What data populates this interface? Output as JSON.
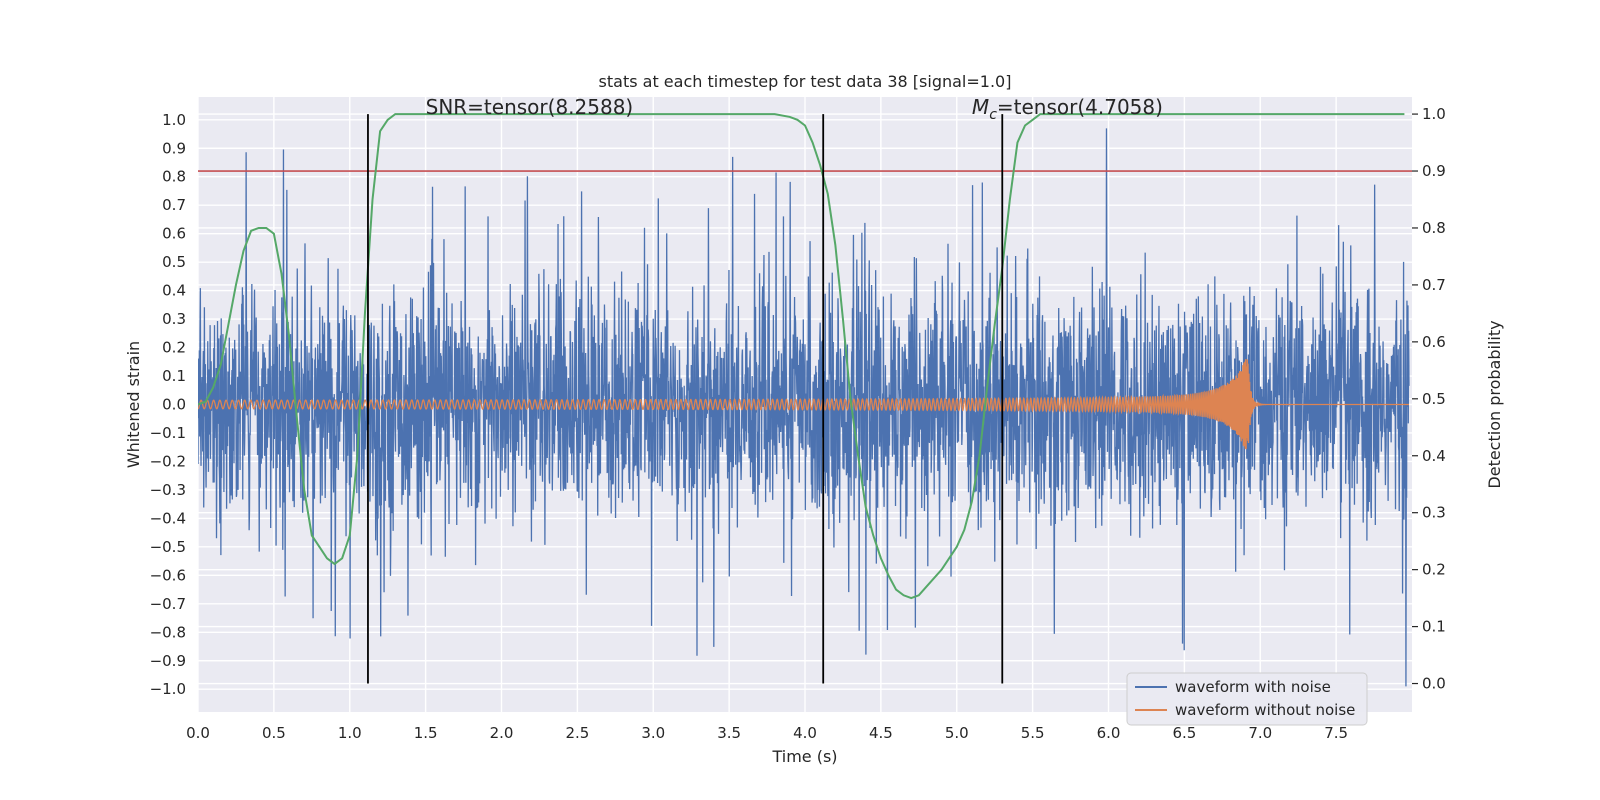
{
  "chart_data": {
    "type": "line",
    "title": "stats at each timestep for test data 38 [signal=1.0]",
    "xlabel": "Time (s)",
    "ylabel_left": "Whitened strain",
    "ylabel_right": "Detection probability",
    "xlim": [
      0.0,
      8.0
    ],
    "ylim_left": [
      -1.08,
      1.08
    ],
    "ylim_right": [
      -0.05,
      1.03
    ],
    "x_ticks": [
      "0.0",
      "0.5",
      "1.0",
      "1.5",
      "2.0",
      "2.5",
      "3.0",
      "3.5",
      "4.0",
      "4.5",
      "5.0",
      "5.5",
      "6.0",
      "6.5",
      "7.0",
      "7.5"
    ],
    "y_left_ticks": [
      "1.0",
      "0.9",
      "0.8",
      "0.7",
      "0.6",
      "0.5",
      "0.4",
      "0.3",
      "0.2",
      "0.1",
      "0.0",
      "−0.1",
      "−0.2",
      "−0.3",
      "−0.4",
      "−0.5",
      "−0.6",
      "−0.7",
      "−0.8",
      "−0.9",
      "−1.0"
    ],
    "y_right_ticks": [
      "1.0",
      "0.9",
      "0.8",
      "0.7",
      "0.6",
      "0.5",
      "0.4",
      "0.3",
      "0.2",
      "0.1",
      "0.0"
    ],
    "grid": true,
    "legend_placement": "bottom-right",
    "colors": {
      "background": "#eaeaf2",
      "grid": "#ffffff",
      "noise": "#4c72b0",
      "clean": "#dd8452",
      "probability": "#55a868",
      "threshold": "#c44e52",
      "marker": "#000000"
    },
    "series": [
      {
        "name": "waveform with noise",
        "description_values": "dense noise, amplitude mostly within ±0.4, spikes up to about 0.97 and down to about -0.99",
        "x_range": [
          0.0,
          7.98
        ],
        "peak_max": 0.97,
        "peak_min": -0.99
      },
      {
        "name": "waveform without noise",
        "x_range": [
          0.0,
          7.98
        ],
        "merger_time": 6.92,
        "merger_amplitude": 0.16,
        "early_amplitude": 0.015
      },
      {
        "name": "",
        "axis": "right",
        "x": [
          0.0,
          0.05,
          0.1,
          0.15,
          0.2,
          0.25,
          0.3,
          0.35,
          0.4,
          0.45,
          0.5,
          0.55,
          0.6,
          0.65,
          0.7,
          0.75,
          0.8,
          0.85,
          0.9,
          0.95,
          1.0,
          1.05,
          1.1,
          1.15,
          1.2,
          1.25,
          1.3,
          1.4,
          1.6,
          2.0,
          2.5,
          3.0,
          3.5,
          3.8,
          3.9,
          3.95,
          4.0,
          4.05,
          4.1,
          4.15,
          4.2,
          4.25,
          4.3,
          4.35,
          4.4,
          4.45,
          4.5,
          4.55,
          4.6,
          4.65,
          4.7,
          4.75,
          4.8,
          4.9,
          5.0,
          5.05,
          5.1,
          5.15,
          5.2,
          5.25,
          5.3,
          5.35,
          5.4,
          5.45,
          5.5,
          5.55,
          5.6,
          5.7,
          6.0,
          6.5,
          7.0,
          7.5,
          7.95
        ],
        "y": [
          0.49,
          0.495,
          0.52,
          0.56,
          0.63,
          0.7,
          0.76,
          0.795,
          0.8,
          0.8,
          0.79,
          0.72,
          0.61,
          0.47,
          0.34,
          0.26,
          0.24,
          0.22,
          0.21,
          0.22,
          0.26,
          0.4,
          0.65,
          0.85,
          0.97,
          0.99,
          1.0,
          1.0,
          1.0,
          1.0,
          1.0,
          1.0,
          1.0,
          1.0,
          0.995,
          0.99,
          0.98,
          0.95,
          0.91,
          0.86,
          0.77,
          0.64,
          0.5,
          0.4,
          0.31,
          0.26,
          0.22,
          0.19,
          0.165,
          0.155,
          0.15,
          0.155,
          0.17,
          0.2,
          0.24,
          0.27,
          0.32,
          0.4,
          0.52,
          0.63,
          0.73,
          0.85,
          0.95,
          0.98,
          0.99,
          1.0,
          1.0,
          1.0,
          1.0,
          1.0,
          1.0,
          1.0,
          1.0
        ]
      }
    ],
    "threshold_line": {
      "axis": "right",
      "value": 0.9
    },
    "vertical_markers": [
      1.12,
      4.12,
      5.3
    ],
    "annotations": [
      {
        "text": "SNR=tensor(8.2588)",
        "x": 1.5
      },
      {
        "prefix": "M",
        "sub": "c",
        "text": "=tensor(4.7058)",
        "x": 5.1
      }
    ]
  }
}
